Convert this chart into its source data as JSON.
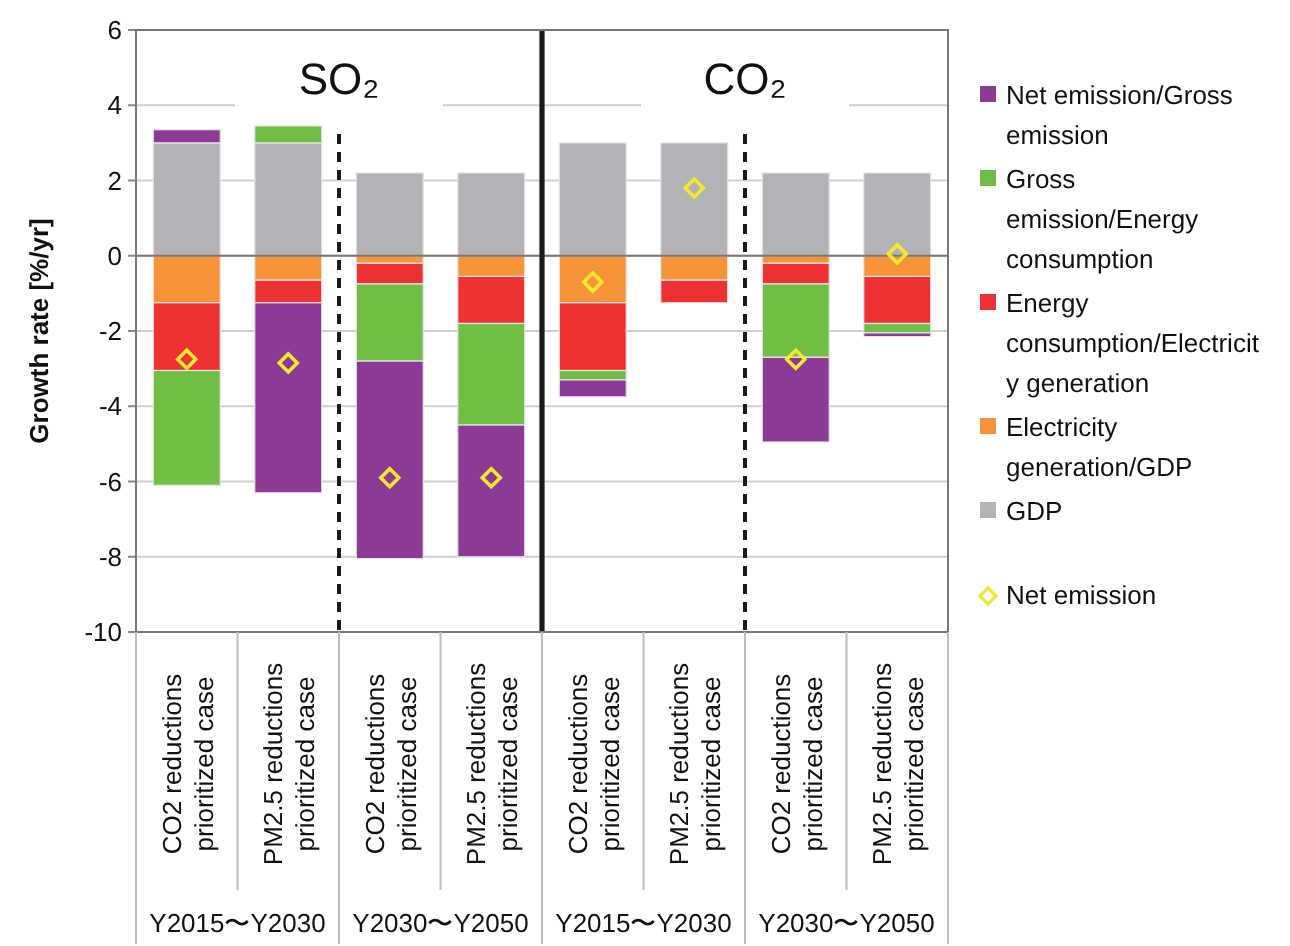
{
  "chart_data": {
    "type": "bar",
    "stacked": true,
    "ylabel": "Growth rate [%/yr]",
    "categories": [
      "CO2 reductions\nprioritized case",
      "PM2.5 reductions\nprioritized case",
      "CO2 reductions\nprioritized case",
      "PM2.5 reductions\nprioritized case",
      "CO2 reductions\nprioritized case",
      "PM2.5 reductions\nprioritized case",
      "CO2 reductions\nprioritized case",
      "PM2.5 reductions\nprioritized case"
    ],
    "series": [
      {
        "name": "GDP",
        "color": "#b2b3b6",
        "values": [
          3.0,
          3.0,
          2.2,
          2.2,
          3.0,
          3.0,
          2.2,
          2.2
        ]
      },
      {
        "name": "Electricity generation/GDP",
        "color": "#f7943a",
        "values": [
          -1.25,
          -0.65,
          -0.2,
          -0.55,
          -1.25,
          -0.65,
          -0.2,
          -0.55
        ]
      },
      {
        "name": "Energy consumption/Electricity generation",
        "color": "#ee3233",
        "values": [
          -1.8,
          -0.6,
          -0.55,
          -1.25,
          -1.8,
          -0.6,
          -0.55,
          -1.25
        ]
      },
      {
        "name": "Gross emission/Energy consumption",
        "color": "#70bf44",
        "values": [
          -3.05,
          0.45,
          -2.05,
          -2.7,
          -0.25,
          null,
          -1.95,
          -0.25
        ]
      },
      {
        "name": "Net emission/Gross emission",
        "color": "#8b3a96",
        "values": [
          0.35,
          -5.05,
          -5.25,
          -3.5,
          -0.45,
          null,
          -2.25,
          -0.1
        ]
      },
      {
        "name": "Net emission",
        "type": "scatter",
        "marker": "diamond",
        "color": "#f2e830",
        "values": [
          -2.75,
          -2.85,
          -5.9,
          -5.9,
          -0.7,
          1.8,
          -2.75,
          0.05
        ]
      }
    ],
    "ylim": [
      -10,
      6
    ],
    "yticks": [
      -10,
      -8,
      -6,
      -4,
      -2,
      0,
      2,
      4,
      6
    ],
    "grid": "y",
    "legend": "right",
    "annotations": [
      "SO₂",
      "CO₂",
      "Y2015〜Y2030",
      "Y2030〜Y2050",
      "Y2015〜Y2030",
      "Y2030〜Y2050"
    ]
  }
}
